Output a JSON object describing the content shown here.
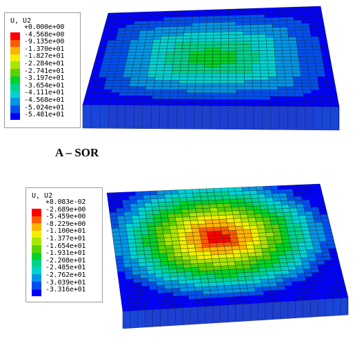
{
  "panels": [
    {
      "legend_title": "U, U2",
      "legend_values": [
        "+0.000e+00",
        "-4.568e+00",
        "-9.135e+00",
        "-1.370e+01",
        "-1.827e+01",
        "-2.284e+01",
        "-2.741e+01",
        "-3.197e+01",
        "-3.654e+01",
        "-4.111e+01",
        "-4.568e+01",
        "-5.024e+01",
        "-5.481e+01"
      ],
      "caption": "A – SOR"
    },
    {
      "legend_title": "U, U2",
      "legend_values": [
        "+8.083e-02",
        "-2.689e+00",
        "-5.459e+00",
        "-8.229e+00",
        "-1.100e+01",
        "-1.377e+01",
        "-1.654e+01",
        "-1.931e+01",
        "-2.208e+01",
        "-2.485e+01",
        "-2.762e+01",
        "-3.039e+01",
        "-3.316e+01"
      ],
      "caption": ""
    }
  ],
  "colors": {
    "bands": [
      "#ff0000",
      "#ff5a00",
      "#ffb400",
      "#f0f000",
      "#a8e600",
      "#5ad200",
      "#00d228",
      "#00d28c",
      "#00d2d2",
      "#0096e6",
      "#0050f0",
      "#0000ff"
    ]
  }
}
